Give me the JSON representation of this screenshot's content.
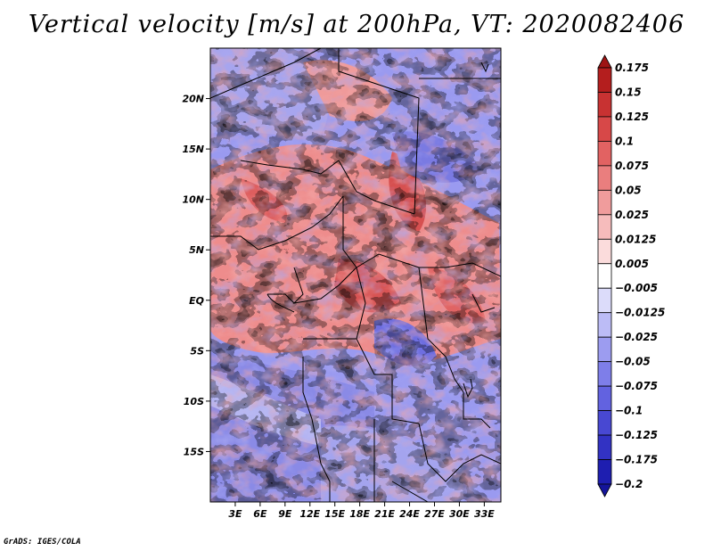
{
  "title": "Vertical velocity [m/s] at 200hPa, VT: 2020082406",
  "credit": "GrADS: IGES/COLA",
  "map": {
    "lon_range": [
      0,
      35
    ],
    "lat_range": [
      -20,
      25
    ],
    "lat_ticks": [
      {
        "label": "20N",
        "value": 20
      },
      {
        "label": "15N",
        "value": 15
      },
      {
        "label": "10N",
        "value": 10
      },
      {
        "label": "5N",
        "value": 5
      },
      {
        "label": "EQ",
        "value": 0
      },
      {
        "label": "5S",
        "value": -5
      },
      {
        "label": "10S",
        "value": -10
      },
      {
        "label": "15S",
        "value": -15
      }
    ],
    "lon_ticks": [
      {
        "label": "3E",
        "value": 3
      },
      {
        "label": "6E",
        "value": 6
      },
      {
        "label": "9E",
        "value": 9
      },
      {
        "label": "12E",
        "value": 12
      },
      {
        "label": "15E",
        "value": 15
      },
      {
        "label": "18E",
        "value": 18
      },
      {
        "label": "21E",
        "value": 21
      },
      {
        "label": "24E",
        "value": 24
      },
      {
        "label": "27E",
        "value": 27
      },
      {
        "label": "30E",
        "value": 30
      },
      {
        "label": "33E",
        "value": 33
      }
    ]
  },
  "colorbar": {
    "labels": [
      "0.175",
      "0.15",
      "0.125",
      "0.1",
      "0.075",
      "0.05",
      "0.025",
      "0.0125",
      "0.005",
      "−0.005",
      "−0.0125",
      "−0.025",
      "−0.05",
      "−0.075",
      "−0.1",
      "−0.125",
      "−0.175",
      "−0.2"
    ],
    "colors": [
      "#9e1414",
      "#b41e1e",
      "#c83232",
      "#d74848",
      "#e26262",
      "#ea7e7e",
      "#f09c9c",
      "#f6bcbc",
      "#fbdcdc",
      "#ffffff",
      "#dcdcfa",
      "#bcbcf6",
      "#9c9cf0",
      "#7e7ee9",
      "#6262e0",
      "#4848d2",
      "#3232c3",
      "#1e1eb0",
      "#14149a"
    ]
  }
}
